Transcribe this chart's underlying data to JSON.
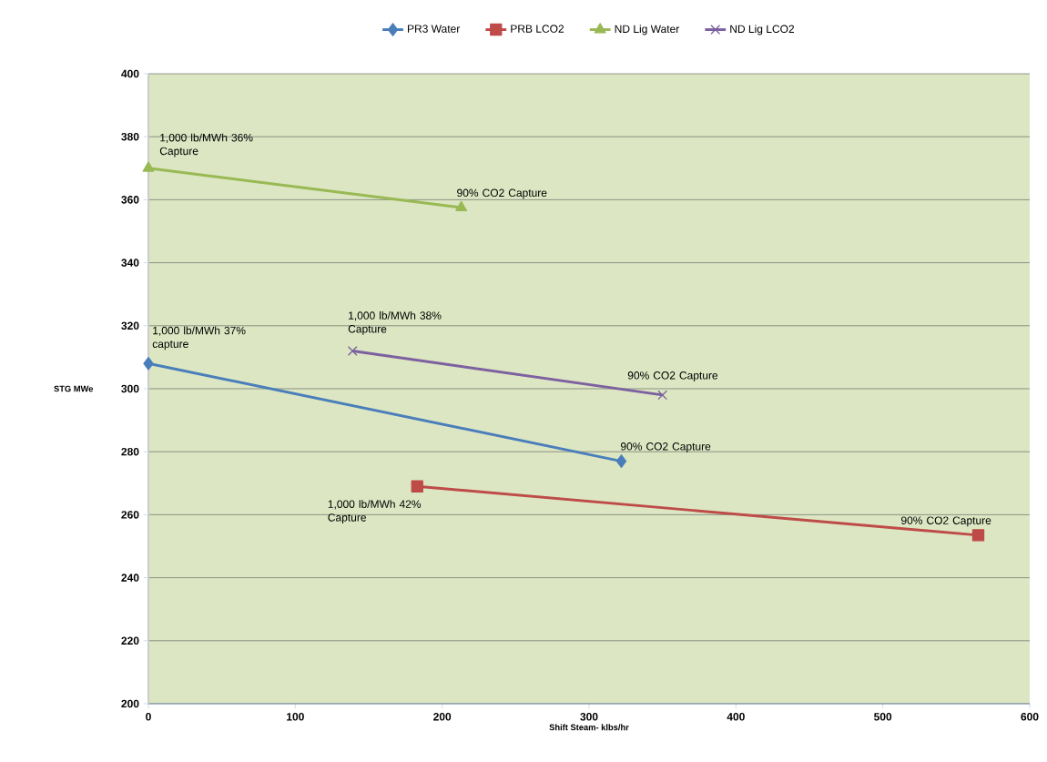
{
  "chart_data": {
    "type": "line",
    "xlabel": "Shift Steam- klbs/hr",
    "ylabel": "STG MWe",
    "xlim": [
      0,
      600
    ],
    "xticks": [
      0,
      100,
      200,
      300,
      400,
      500,
      600
    ],
    "ylim": [
      200,
      400
    ],
    "yticks": [
      200,
      220,
      240,
      260,
      280,
      300,
      320,
      340,
      360,
      380,
      400
    ],
    "grid": "y",
    "legend": "top",
    "series": [
      {
        "name": "PR3 Water",
        "color": "#4a7ebb",
        "marker": "diamond",
        "x": [
          0,
          322
        ],
        "values": [
          308,
          277
        ]
      },
      {
        "name": "PRB LCO2",
        "color": "#be4b48",
        "marker": "square",
        "x": [
          183,
          565
        ],
        "values": [
          269,
          253.5
        ]
      },
      {
        "name": "ND Lig Water",
        "color": "#98b954",
        "marker": "triangle",
        "x": [
          0,
          213
        ],
        "values": [
          370,
          357.5
        ]
      },
      {
        "name": "ND Lig LCO2",
        "color": "#7d60a0",
        "marker": "cross",
        "x": [
          139,
          350
        ],
        "values": [
          312,
          298
        ]
      }
    ],
    "annotations": [
      {
        "text": "1,000 lb/MWh 36% Capture",
        "x": 0,
        "y": 370
      },
      {
        "text": "90% CO2 Capture",
        "x": 213,
        "y": 357.5
      },
      {
        "text": "1,000 lb/MWh 37% capture",
        "x": 0,
        "y": 308
      },
      {
        "text": "1,000 lb/MWh 38% Capture",
        "x": 139,
        "y": 312
      },
      {
        "text": "90% CO2 Capture",
        "x": 350,
        "y": 298
      },
      {
        "text": "90% CO2 Capture",
        "x": 322,
        "y": 277
      },
      {
        "text": "1,000 lb/MWh 42% Capture",
        "x": 183,
        "y": 269
      },
      {
        "text": "90% CO2 Capture",
        "x": 565,
        "y": 253.5
      }
    ]
  }
}
